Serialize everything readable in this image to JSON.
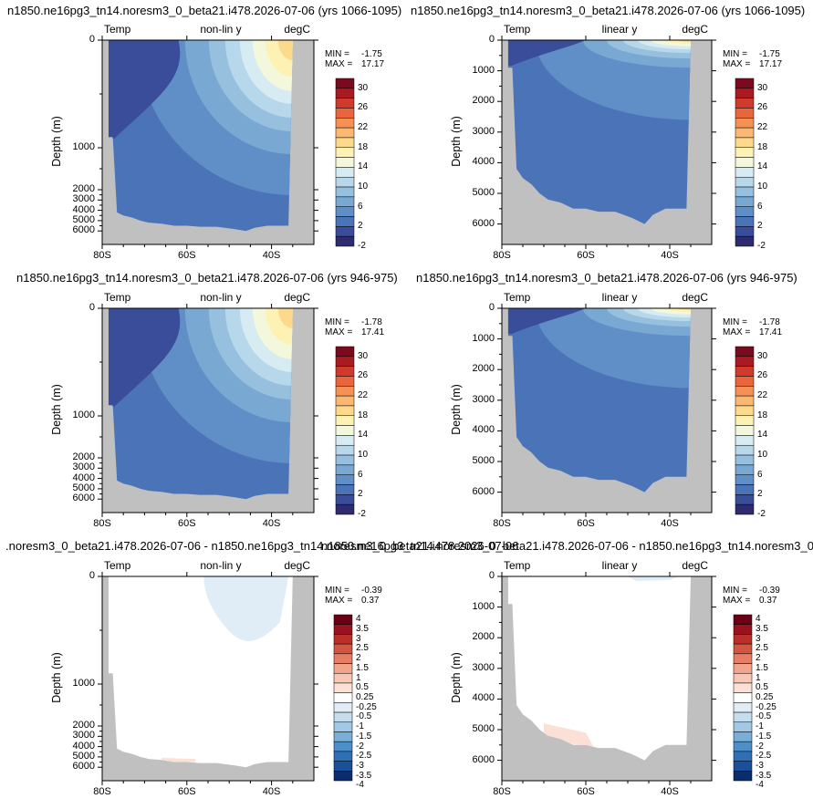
{
  "titles": {
    "row1_left": "n1850.ne16pg3_tn14.noresm3_0_beta21.i478.2026-07-06 (yrs 1066-1095)",
    "row1_right": "n1850.ne16pg3_tn14.noresm3_0_beta21.i478.2026-07-06 (yrs 1066-1095)",
    "row2_left": "n1850.ne16pg3_tn14.noresm3_0_beta21.i478.2026-07-06 (yrs 946-975)",
    "row2_right": "n1850.ne16pg3_tn14.noresm3_0_beta21.i478.2026-07-06 (yrs 946-975)",
    "row3_left": ".noresm3_0_beta21.i478.2026-07-06 - n1850.ne16pg3_tn14.noresm3_0_beta21.i478.2026-07-06",
    "row3_right": "n1850.ne16pg3_tn14.noresm3_0_beta21.i478.2026-07-06 - n1850.ne16pg3_tn14.noresm3_0_bet"
  },
  "chart_data": [
    {
      "type": "heatmap",
      "panel": "row1_left",
      "var_label": "Temp",
      "scale_label": "non-lin y",
      "units": "degC",
      "stats": {
        "min_label": "MIN = ",
        "min": "-1.75",
        "max_label": "MAX = ",
        "max": "17.17"
      },
      "ylabel": "Depth (m)",
      "yticks": [
        "0",
        "1000",
        "2000",
        "3000",
        "4000",
        "5000",
        "6000"
      ],
      "xticks": [
        "80S",
        "60S",
        "40S"
      ],
      "colorbar": [
        "30",
        "26",
        "22",
        "18",
        "14",
        "10",
        "6",
        "2",
        "-2"
      ]
    },
    {
      "type": "heatmap",
      "panel": "row1_right",
      "var_label": "Temp",
      "scale_label": "linear y",
      "units": "degC",
      "stats": {
        "min_label": "MIN = ",
        "min": "-1.75",
        "max_label": "MAX = ",
        "max": "17.17"
      },
      "ylabel": "Depth (m)",
      "yticks": [
        "0",
        "1000",
        "2000",
        "3000",
        "4000",
        "5000",
        "6000"
      ],
      "xticks": [
        "80S",
        "60S",
        "40S"
      ],
      "colorbar": [
        "30",
        "26",
        "22",
        "18",
        "14",
        "10",
        "6",
        "2",
        "-2"
      ]
    },
    {
      "type": "heatmap",
      "panel": "row2_left",
      "var_label": "Temp",
      "scale_label": "non-lin y",
      "units": "degC",
      "stats": {
        "min_label": "MIN = ",
        "min": "-1.78",
        "max_label": "MAX = ",
        "max": "17.41"
      },
      "ylabel": "Depth (m)",
      "yticks": [
        "0",
        "1000",
        "2000",
        "3000",
        "4000",
        "5000",
        "6000"
      ],
      "xticks": [
        "80S",
        "60S",
        "40S"
      ],
      "colorbar": [
        "30",
        "26",
        "22",
        "18",
        "14",
        "10",
        "6",
        "2",
        "-2"
      ]
    },
    {
      "type": "heatmap",
      "panel": "row2_right",
      "var_label": "Temp",
      "scale_label": "linear y",
      "units": "degC",
      "stats": {
        "min_label": "MIN = ",
        "min": "-1.78",
        "max_label": "MAX = ",
        "max": "17.41"
      },
      "ylabel": "Depth (m)",
      "yticks": [
        "0",
        "1000",
        "2000",
        "3000",
        "4000",
        "5000",
        "6000"
      ],
      "xticks": [
        "80S",
        "60S",
        "40S"
      ],
      "colorbar": [
        "30",
        "26",
        "22",
        "18",
        "14",
        "10",
        "6",
        "2",
        "-2"
      ]
    },
    {
      "type": "heatmap",
      "panel": "row3_left",
      "var_label": "Temp",
      "scale_label": "non-lin y",
      "units": "degC",
      "stats": {
        "min_label": "MIN = ",
        "min": "-0.39",
        "max_label": "MAX = ",
        "max": "0.37"
      },
      "ylabel": "Depth (m)",
      "yticks": [
        "0",
        "1000",
        "2000",
        "3000",
        "4000",
        "5000",
        "6000"
      ],
      "xticks": [
        "80S",
        "60S",
        "40S"
      ],
      "colorbar": [
        "4",
        "3.5",
        "3",
        "2.5",
        "2",
        "1.5",
        "1",
        "0.5",
        "0.25",
        "-0.25",
        "-0.5",
        "-1",
        "-1.5",
        "-2",
        "-2.5",
        "-3",
        "-3.5",
        "-4"
      ]
    },
    {
      "type": "heatmap",
      "panel": "row3_right",
      "var_label": "Temp",
      "scale_label": "linear y",
      "units": "degC",
      "stats": {
        "min_label": "MIN = ",
        "min": "-0.39",
        "max_label": "MAX = ",
        "max": "0.37"
      },
      "ylabel": "Depth (m)",
      "yticks": [
        "0",
        "1000",
        "2000",
        "3000",
        "4000",
        "5000",
        "6000"
      ],
      "xticks": [
        "80S",
        "60S",
        "40S"
      ],
      "colorbar": [
        "4",
        "3.5",
        "3",
        "2.5",
        "2",
        "1.5",
        "1",
        "0.5",
        "0.25",
        "-0.25",
        "-0.5",
        "-1",
        "-1.5",
        "-2",
        "-2.5",
        "-3",
        "-3.5",
        "-4"
      ]
    }
  ],
  "colors": {
    "land": "#c0c0c0",
    "temp_palette": [
      "#2e2b6e",
      "#3a4d9a",
      "#4a73b8",
      "#5f8fc6",
      "#79a8d3",
      "#97c0df",
      "#b7d7ea",
      "#d6ebf2",
      "#f3f8dc",
      "#fdf2b3",
      "#fdd98b",
      "#fcb86f",
      "#f69156",
      "#e8653e",
      "#d03a2c",
      "#a91a22",
      "#7a0a1e"
    ],
    "diff_palette": [
      "#0b2d6b",
      "#1a4f9a",
      "#2f6fb6",
      "#4f8fc8",
      "#78aed7",
      "#a2c8e4",
      "#c6ddee",
      "#e1edf6",
      "#ffffff",
      "#fbe0d5",
      "#f7c7b4",
      "#f1a58c",
      "#e57e64",
      "#d45640",
      "#bb2f2a",
      "#98121f",
      "#6b0014"
    ]
  }
}
